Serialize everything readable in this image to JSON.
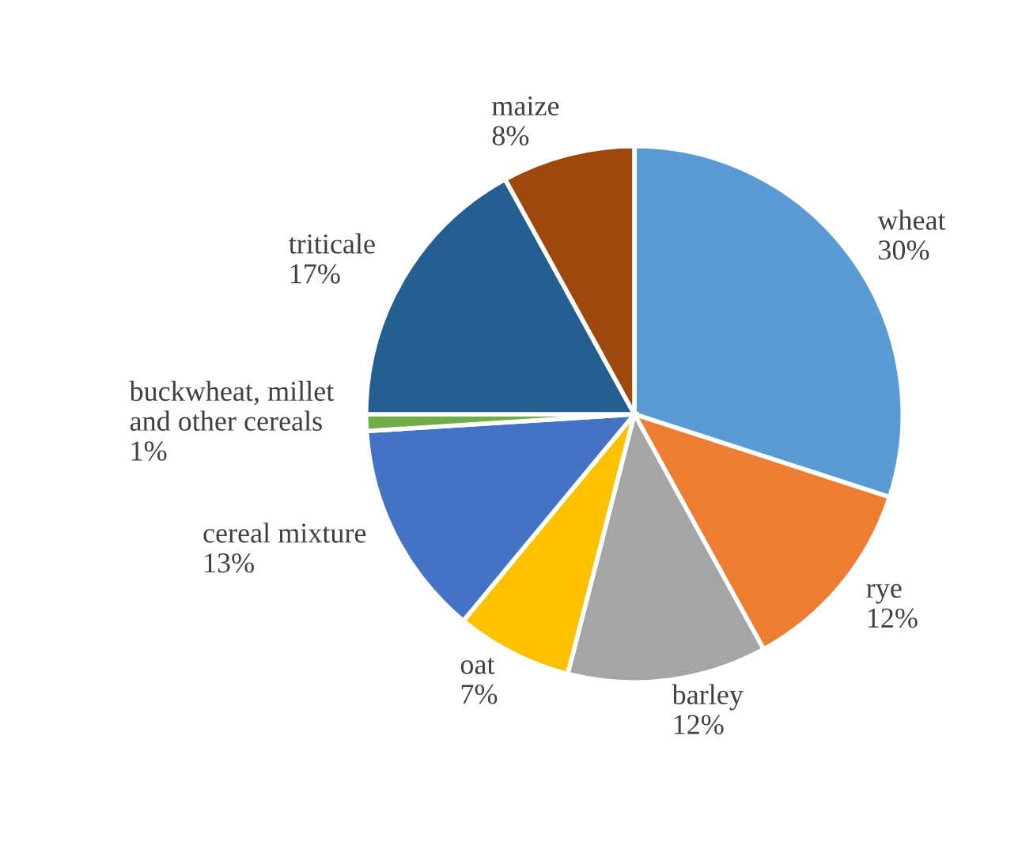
{
  "chart_data": {
    "type": "pie",
    "categories": [
      "wheat",
      "rye",
      "barley",
      "oat",
      "cereal mixture",
      "buckwheat, millet\nand other cereals",
      "triticale",
      "maize"
    ],
    "values": [
      30,
      12,
      12,
      7,
      13,
      1,
      17,
      8
    ],
    "value_labels": [
      "30%",
      "12%",
      "12%",
      "7%",
      "13%",
      "1%",
      "17%",
      "8%"
    ],
    "colors": [
      "#5b9bd5",
      "#ed7d31",
      "#a5a5a5",
      "#ffc000",
      "#4472c4",
      "#70ad47",
      "#255e91",
      "#9e480e"
    ],
    "legend": false
  }
}
